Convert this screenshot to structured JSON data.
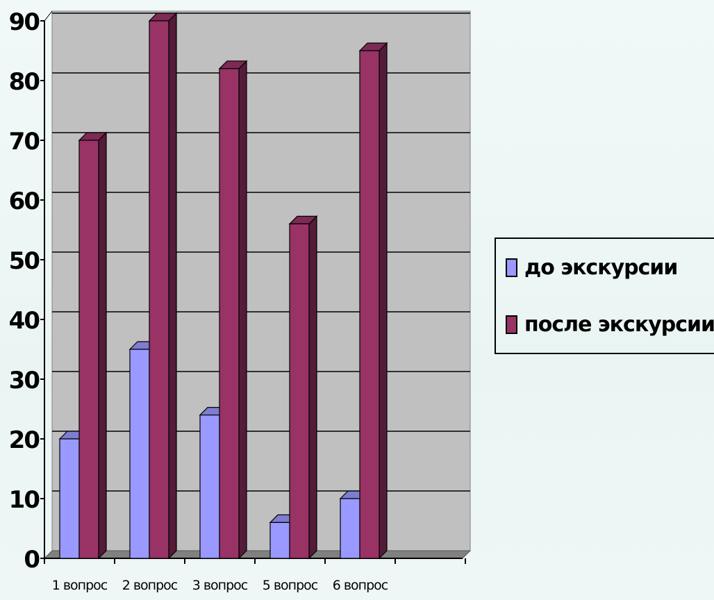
{
  "chart_data": {
    "type": "bar",
    "categories": [
      "1 вопрос",
      "2 вопрос",
      "3 вопрос",
      "5 вопрос",
      "6 вопрос"
    ],
    "series": [
      {
        "name": "до экскурсии",
        "values": [
          20,
          35,
          24,
          6,
          10
        ],
        "color": "#9999ff"
      },
      {
        "name": "после экскурсии",
        "values": [
          70,
          90,
          82,
          56,
          85
        ],
        "color": "#993366"
      }
    ],
    "ylim": [
      0,
      90
    ],
    "yticks": [
      0,
      10,
      20,
      30,
      40,
      50,
      60,
      70,
      80,
      90
    ],
    "grid": true,
    "legend_position": "right",
    "style": "3d-clustered-column",
    "wall_color": "#c0c0c0"
  }
}
